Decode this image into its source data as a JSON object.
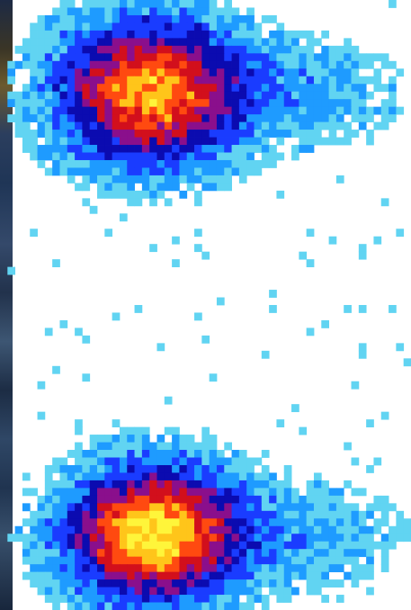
{
  "chart_data": {
    "type": "heatmap",
    "title": "",
    "xlabel": "",
    "ylabel": "",
    "axes_visible": false,
    "grid": false,
    "legend": "none",
    "colormap": [
      "#ffffff",
      "#61d4f2",
      "#1e9bff",
      "#1a3cff",
      "#0b0bb0",
      "#8a0f8c",
      "#d20f1c",
      "#ff4a10",
      "#ffc51a",
      "#fff53a"
    ],
    "grid_cols": 55,
    "grid_rows": 80,
    "clusters": [
      {
        "name": "",
        "center_col": 19.5,
        "center_row": 11.5,
        "peak_level": 8
      },
      {
        "name": "",
        "center_col": 20.0,
        "center_row": 69.5,
        "peak_level": 9
      }
    ]
  }
}
